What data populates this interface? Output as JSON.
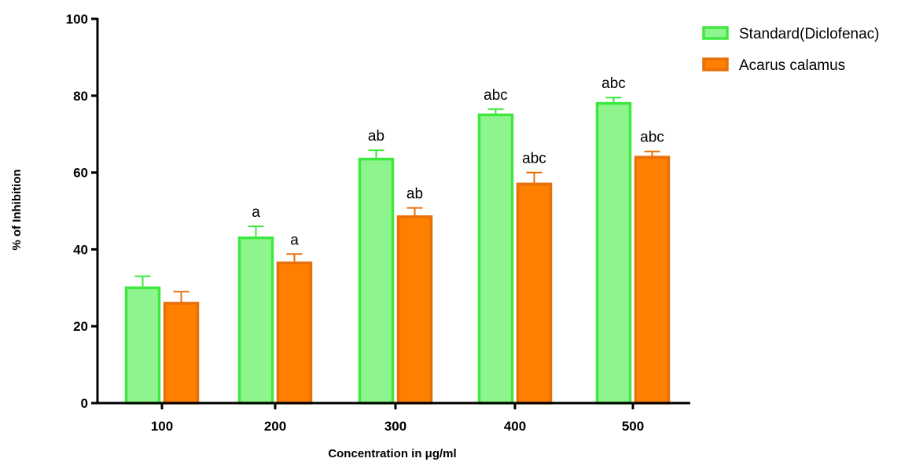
{
  "chart_data": {
    "type": "bar",
    "title": "",
    "xlabel": "Concentration in μg/ml",
    "ylabel": "% of Inhibition",
    "categories": [
      "100",
      "200",
      "300",
      "400",
      "500"
    ],
    "ylim": [
      0,
      100
    ],
    "yticks": [
      "0",
      "20",
      "40",
      "60",
      "80",
      "100"
    ],
    "legend_position": "top-right",
    "series": [
      {
        "name": "Standard(Diclofenac)",
        "values": [
          30,
          43,
          63.5,
          75,
          78
        ],
        "errors": [
          3,
          3,
          2.3,
          1.5,
          1.5
        ],
        "significance": [
          "",
          "a",
          "ab",
          "abc",
          "abc"
        ],
        "fill": "#8ef58e",
        "stroke": "#3ee83e"
      },
      {
        "name": "Acarus calamus",
        "values": [
          26,
          36.5,
          48.5,
          57,
          64
        ],
        "errors": [
          3,
          2.3,
          2.3,
          3,
          1.5
        ],
        "significance": [
          "",
          "a",
          "ab",
          "abc",
          "abc"
        ],
        "fill": "#ff7f00",
        "stroke": "#e8700a"
      }
    ]
  }
}
